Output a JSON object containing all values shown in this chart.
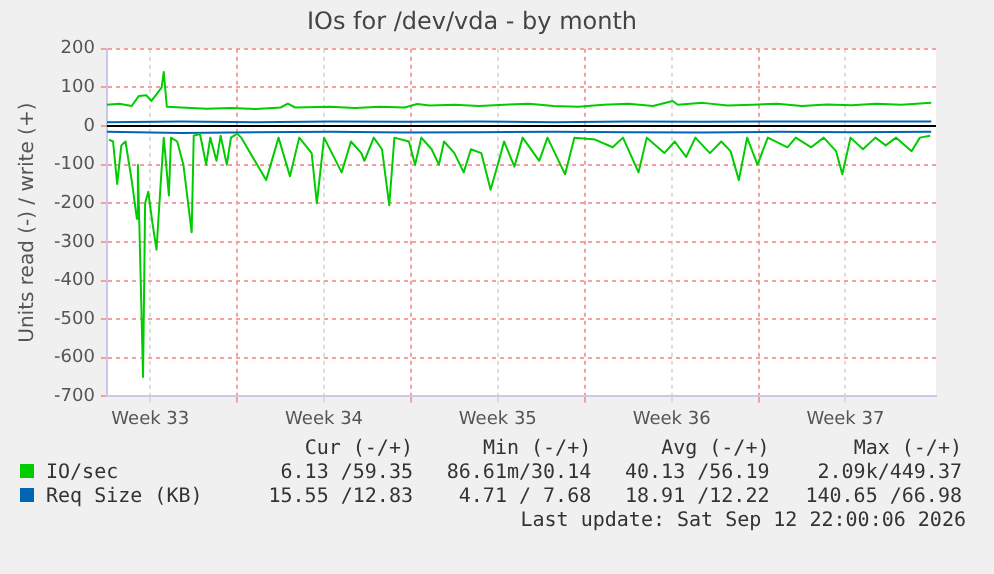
{
  "chart_data": {
    "type": "line",
    "title": "IOs for /dev/vda - by month",
    "ylabel": "Units read (-) / write (+)",
    "xlim": [
      "2026-08-11T18:00",
      "2026-09-14T03:36"
    ],
    "xticks": [
      {
        "value": "2026-08-13T12:00",
        "label": "Week 33"
      },
      {
        "value": "2026-08-17",
        "label": null
      },
      {
        "value": "2026-08-20T12:00",
        "label": "Week 34"
      },
      {
        "value": "2026-08-24",
        "label": null
      },
      {
        "value": "2026-08-27T12:00",
        "label": "Week 35"
      },
      {
        "value": "2026-08-31",
        "label": null
      },
      {
        "value": "2026-09-03T12:00",
        "label": "Week 36"
      },
      {
        "value": "2026-09-07",
        "label": null
      },
      {
        "value": "2026-09-10T12:00",
        "label": "Week 37"
      }
    ],
    "ylim": [
      -700,
      200
    ],
    "yticks": [
      -700,
      -600,
      -500,
      -400,
      -300,
      -200,
      -100,
      0,
      100,
      200
    ],
    "grid": true,
    "legend": "bottom",
    "ref_lines": [
      {
        "axis": "y",
        "value": 0,
        "color": "#000000"
      }
    ],
    "series": [
      {
        "name": "IO/sec",
        "color": "#00cc00",
        "x": [
          "2026-08-11T18:00",
          "2026-08-12T06:00",
          "2026-08-12T18:00",
          "2026-08-13T01:00",
          "2026-08-13T08:00",
          "2026-08-13T13:00",
          "2026-08-13T18:00",
          "2026-08-13T23:00",
          "2026-08-14T01:00",
          "2026-08-14T04:00",
          "2026-08-14T18:00",
          "2026-08-15T18:00",
          "2026-08-16T18:00",
          "2026-08-17T18:00",
          "2026-08-18T18:00",
          "2026-08-19T01:00",
          "2026-08-19T08:00",
          "2026-08-20T18:00",
          "2026-08-21T18:00",
          "2026-08-22T18:00",
          "2026-08-23T18:00",
          "2026-08-24T06:00",
          "2026-08-24T18:00",
          "2026-08-25T18:00",
          "2026-08-26T18:00",
          "2026-08-27T18:00",
          "2026-08-28T18:00",
          "2026-08-29T18:00",
          "2026-08-30T18:00",
          "2026-08-31T18:00",
          "2026-09-01T18:00",
          "2026-09-02T18:00",
          "2026-09-03T13:00",
          "2026-09-03T18:00",
          "2026-09-04T18:00",
          "2026-09-05T18:00",
          "2026-09-06T18:00",
          "2026-09-07T18:00",
          "2026-09-08T18:00",
          "2026-09-09T18:00",
          "2026-09-10T18:00",
          "2026-09-11T18:00",
          "2026-09-12T18:00",
          "2026-09-13T23:00"
        ],
        "values": [
          55,
          58,
          52,
          78,
          80,
          65,
          82,
          100,
          140,
          50,
          48,
          45,
          47,
          44,
          48,
          58,
          48,
          50,
          47,
          50,
          48,
          57,
          53,
          55,
          52,
          55,
          58,
          52,
          50,
          55,
          58,
          52,
          65,
          55,
          60,
          53,
          55,
          58,
          52,
          56,
          54,
          58,
          55,
          60
        ]
      },
      {
        "color": "#00cc00",
        "x": [
          "2026-08-11T20:00",
          "2026-08-12T00:00",
          "2026-08-12T04:00",
          "2026-08-12T08:00",
          "2026-08-12T12:00",
          "2026-08-12T18:00",
          "2026-08-12T23:00",
          "2026-08-13T00:00",
          "2026-08-13T05:00",
          "2026-08-13T07:00",
          "2026-08-13T10:00",
          "2026-08-13T14:00",
          "2026-08-13T18:00",
          "2026-08-13T22:00",
          "2026-08-14T01:00",
          "2026-08-14T06:00",
          "2026-08-14T08:00",
          "2026-08-14T14:00",
          "2026-08-14T20:00",
          "2026-08-15T04:00",
          "2026-08-15T06:00",
          "2026-08-15T12:00",
          "2026-08-15T18:00",
          "2026-08-15T22:00",
          "2026-08-16T04:00",
          "2026-08-16T08:00",
          "2026-08-16T14:00",
          "2026-08-16T18:00",
          "2026-08-17T00:00",
          "2026-08-17T04:00",
          "2026-08-18T04:00",
          "2026-08-18T16:00",
          "2026-08-19T03:00",
          "2026-08-19T12:00",
          "2026-08-20T00:00",
          "2026-08-20T05:00",
          "2026-08-20T12:00",
          "2026-08-21T05:00",
          "2026-08-21T14:00",
          "2026-08-22T00:00",
          "2026-08-22T03:00",
          "2026-08-22T12:00",
          "2026-08-22T20:00",
          "2026-08-23T03:00",
          "2026-08-23T08:00",
          "2026-08-23T22:00",
          "2026-08-24T04:00",
          "2026-08-24T10:00",
          "2026-08-24T20:00",
          "2026-08-25T03:00",
          "2026-08-25T08:00",
          "2026-08-25T18:00",
          "2026-08-26T03:00",
          "2026-08-26T10:00",
          "2026-08-26T20:00",
          "2026-08-27T05:00",
          "2026-08-27T13:00",
          "2026-08-27T18:00",
          "2026-08-28T04:00",
          "2026-08-28T12:00",
          "2026-08-29T04:00",
          "2026-08-29T12:00",
          "2026-08-30T05:00",
          "2026-08-30T14:00",
          "2026-08-31T10:00",
          "2026-09-01T03:00",
          "2026-09-01T13:00",
          "2026-09-02T04:00",
          "2026-09-02T12:00",
          "2026-09-03T05:00",
          "2026-09-03T15:00",
          "2026-09-04T02:00",
          "2026-09-04T11:00",
          "2026-09-05T01:00",
          "2026-09-05T12:00",
          "2026-09-05T21:00",
          "2026-09-06T05:00",
          "2026-09-06T13:00",
          "2026-09-06T23:00",
          "2026-09-07T09:00",
          "2026-09-08T04:00",
          "2026-09-08T12:00",
          "2026-09-09T03:00",
          "2026-09-09T15:00",
          "2026-09-10T03:00",
          "2026-09-10T09:00",
          "2026-09-10T17:00",
          "2026-09-11T05:00",
          "2026-09-11T17:00",
          "2026-09-12T03:00",
          "2026-09-12T13:00",
          "2026-09-13T04:00",
          "2026-09-13T12:00",
          "2026-09-13T22:00"
        ],
        "values": [
          -35,
          -40,
          -150,
          -50,
          -40,
          -140,
          -240,
          -100,
          -650,
          -200,
          -170,
          -250,
          -320,
          -150,
          -30,
          -180,
          -30,
          -40,
          -100,
          -275,
          -25,
          -20,
          -100,
          -30,
          -90,
          -25,
          -100,
          -30,
          -20,
          -30,
          -140,
          -30,
          -130,
          -30,
          -70,
          -200,
          -30,
          -120,
          -40,
          -70,
          -90,
          -30,
          -60,
          -205,
          -30,
          -40,
          -100,
          -30,
          -60,
          -100,
          -40,
          -70,
          -120,
          -60,
          -70,
          -165,
          -90,
          -40,
          -105,
          -30,
          -90,
          -30,
          -125,
          -30,
          -35,
          -55,
          -30,
          -120,
          -30,
          -70,
          -40,
          -80,
          -30,
          -70,
          -40,
          -65,
          -140,
          -30,
          -100,
          -30,
          -55,
          -30,
          -55,
          -30,
          -65,
          -125,
          -30,
          -60,
          -30,
          -50,
          -30,
          -65,
          -30,
          -25
        ]
      },
      {
        "name": "Req Size (KB)",
        "color": "#0066b3",
        "x": [
          "2026-08-11T18:00",
          "2026-08-14T18:00",
          "2026-08-17T18:00",
          "2026-08-20T18:00",
          "2026-08-23T18:00",
          "2026-08-26T18:00",
          "2026-08-29T18:00",
          "2026-09-01T18:00",
          "2026-09-04T18:00",
          "2026-09-07T18:00",
          "2026-09-10T18:00",
          "2026-09-13T23:00"
        ],
        "values": [
          10,
          12,
          10,
          12,
          11,
          12,
          10,
          12,
          11,
          12,
          12,
          12
        ]
      },
      {
        "color": "#0066b3",
        "x": [
          "2026-08-11T18:00",
          "2026-08-14T18:00",
          "2026-08-17T18:00",
          "2026-08-20T18:00",
          "2026-08-23T18:00",
          "2026-08-26T18:00",
          "2026-08-29T18:00",
          "2026-09-01T18:00",
          "2026-09-04T18:00",
          "2026-09-07T18:00",
          "2026-09-10T18:00",
          "2026-09-13T23:00"
        ],
        "values": [
          -15,
          -18,
          -16,
          -15,
          -17,
          -16,
          -15,
          -16,
          -17,
          -15,
          -16,
          -15
        ]
      }
    ],
    "annotations": [
      "Cur (-/+)",
      "Min (-/+)",
      "Avg (-/+)",
      "Max (-/+)",
      "6.13 /59.35",
      "86.61m/30.14",
      "40.13 /56.19",
      "2.09k/449.37",
      "15.55 /12.83",
      "4.71 / 7.68",
      "18.91 /12.22",
      "140.65 /66.98",
      "Last update: Sat Sep 12 22:00:06 2026"
    ]
  }
}
